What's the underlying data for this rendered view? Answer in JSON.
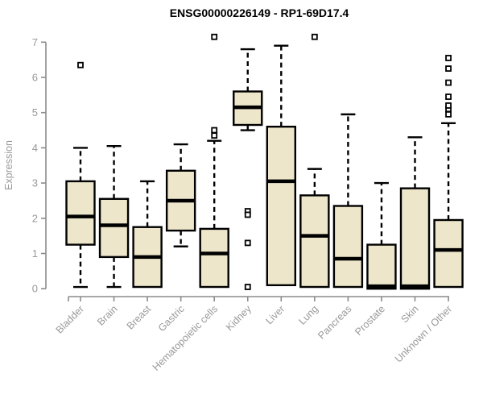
{
  "chart_data": {
    "type": "boxplot",
    "title": "ENSG00000226149 - RP1-69D17.4",
    "ylabel": "Expression",
    "xlabel": "",
    "ylim": [
      0,
      7
    ],
    "yticks": [
      0,
      1,
      2,
      3,
      4,
      5,
      6,
      7
    ],
    "grid": false,
    "legend": "none",
    "categories": [
      "Bladder",
      "Brain",
      "Breast",
      "Gastric",
      "Hematopoietic cells",
      "Kidney",
      "Liver",
      "Lung",
      "Pancreas",
      "Prostate",
      "Skin",
      "Unknown / Other"
    ],
    "boxes": [
      {
        "label": "Bladder",
        "whisker_low": 0.05,
        "q1": 1.25,
        "median": 2.05,
        "q3": 3.05,
        "whisker_high": 4.0,
        "outliers": [
          6.35
        ]
      },
      {
        "label": "Brain",
        "whisker_low": 0.05,
        "q1": 0.9,
        "median": 1.8,
        "q3": 2.55,
        "whisker_high": 4.05,
        "outliers": []
      },
      {
        "label": "Breast",
        "whisker_low": null,
        "q1": 0.05,
        "median": 0.9,
        "q3": 1.75,
        "whisker_high": 3.05,
        "outliers": []
      },
      {
        "label": "Gastric",
        "whisker_low": 1.2,
        "q1": 1.65,
        "median": 2.5,
        "q3": 3.35,
        "whisker_high": 4.1,
        "outliers": []
      },
      {
        "label": "Hematopoietic cells",
        "whisker_low": null,
        "q1": 0.05,
        "median": 1.0,
        "q3": 1.7,
        "whisker_high": 4.2,
        "outliers": [
          4.35,
          4.5,
          7.15
        ]
      },
      {
        "label": "Kidney",
        "whisker_low": 4.5,
        "q1": 4.65,
        "median": 5.15,
        "q3": 5.6,
        "whisker_high": 6.8,
        "outliers": [
          2.2,
          2.1,
          1.3,
          0.05
        ]
      },
      {
        "label": "Liver",
        "whisker_low": null,
        "q1": 0.1,
        "median": 3.05,
        "q3": 4.6,
        "whisker_high": 6.9,
        "outliers": []
      },
      {
        "label": "Lung",
        "whisker_low": null,
        "q1": 0.05,
        "median": 1.5,
        "q3": 2.65,
        "whisker_high": 3.4,
        "outliers": [
          7.15
        ]
      },
      {
        "label": "Pancreas",
        "whisker_low": null,
        "q1": 0.05,
        "median": 0.85,
        "q3": 2.35,
        "whisker_high": 4.95,
        "outliers": []
      },
      {
        "label": "Prostate",
        "whisker_low": null,
        "q1": 0.0,
        "median": 0.07,
        "q3": 1.25,
        "whisker_high": 3.0,
        "outliers": []
      },
      {
        "label": "Skin",
        "whisker_low": null,
        "q1": 0.0,
        "median": 0.07,
        "q3": 2.85,
        "whisker_high": 4.3,
        "outliers": []
      },
      {
        "label": "Unknown / Other",
        "whisker_low": null,
        "q1": 0.05,
        "median": 1.1,
        "q3": 1.95,
        "whisker_high": 4.7,
        "outliers": [
          4.95,
          5.1,
          5.2,
          5.45,
          5.85,
          6.25,
          6.55
        ]
      }
    ],
    "colors": {
      "box_fill": "#EDE6CB",
      "box_border": "#000000",
      "median": "#000000",
      "whisker": "#000000",
      "outlier_stroke": "#000000",
      "outlier_fill": "#FFFFFF",
      "axis_line": "#8C8C8C",
      "tick_label": "#999999",
      "title": "#000000",
      "background": "#FFFFFF"
    }
  }
}
